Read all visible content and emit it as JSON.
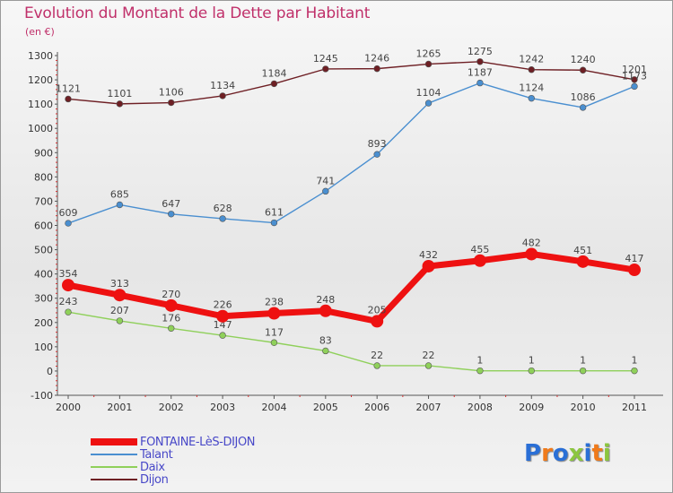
{
  "chart_data": {
    "type": "line",
    "title": "Evolution du Montant de la Dette par Habitant",
    "subtitle": "(en €)",
    "x": [
      "2000",
      "2001",
      "2002",
      "2003",
      "2004",
      "2005",
      "2006",
      "2007",
      "2008",
      "2009",
      "2010",
      "2011"
    ],
    "ylim": [
      -100,
      1300
    ],
    "yticks": [
      -100,
      0,
      100,
      200,
      300,
      400,
      500,
      600,
      700,
      800,
      900,
      1000,
      1100,
      1200,
      1300
    ],
    "grid": false,
    "legend_position": "bottom-left",
    "series": [
      {
        "name": "Dijon",
        "color": "#6e1f24",
        "values": [
          1121,
          1101,
          1106,
          1134,
          1184,
          1245,
          1246,
          1265,
          1275,
          1242,
          1240,
          1201
        ]
      },
      {
        "name": "Talant",
        "color": "#4a8fd0",
        "values": [
          609,
          685,
          647,
          628,
          611,
          741,
          893,
          1104,
          1187,
          1124,
          1086,
          1173
        ]
      },
      {
        "name": "Daix",
        "color": "#8fd05a",
        "values": [
          243,
          207,
          176,
          147,
          117,
          83,
          22,
          22,
          1,
          1,
          1,
          1
        ]
      },
      {
        "name": "FONTAINE-LèS-DIJON",
        "color": "#ee1111",
        "values": [
          354,
          313,
          270,
          226,
          238,
          248,
          205,
          432,
          455,
          482,
          451,
          417
        ]
      }
    ]
  },
  "legend": {
    "items": [
      {
        "label": "FONTAINE-LèS-DIJON",
        "color": "#ee1111"
      },
      {
        "label": "Talant",
        "color": "#4a8fd0"
      },
      {
        "label": "Daix",
        "color": "#8fd05a"
      },
      {
        "label": "Dijon",
        "color": "#6e1f24"
      }
    ]
  },
  "brand": {
    "logo_text": "Proxiti",
    "letter_colors": [
      "#2a6fd6",
      "#f07a1a",
      "#2a6fd6",
      "#8cc63f",
      "#2a6fd6",
      "#f07a1a",
      "#8cc63f"
    ]
  }
}
